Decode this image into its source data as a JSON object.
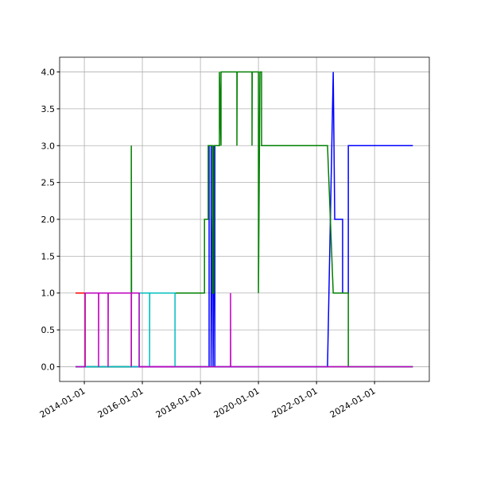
{
  "chart_data": {
    "type": "line",
    "xlim": [
      "2013-02-24",
      "2025-11-20"
    ],
    "xticks": [
      "2014-01-01",
      "2016-01-01",
      "2018-01-01",
      "2020-01-01",
      "2022-01-01",
      "2024-01-01"
    ],
    "ylim": [
      -0.2,
      4.2
    ],
    "yticks": [
      {
        "value": 0,
        "label": "0.0"
      },
      {
        "value": 0.5,
        "label": "0.5"
      },
      {
        "value": 1,
        "label": "1.0"
      },
      {
        "value": 1.5,
        "label": "1.5"
      },
      {
        "value": 2,
        "label": "2.0"
      },
      {
        "value": 2.5,
        "label": "2.5"
      },
      {
        "value": 3,
        "label": "3.0"
      },
      {
        "value": 3.5,
        "label": "3.5"
      },
      {
        "value": 4,
        "label": "4.0"
      }
    ],
    "grid": true,
    "series": [
      {
        "color": "#ff0000",
        "x": [
          "2013-09-12",
          "2014-01-11",
          "2014-01-11",
          "2025-04-27"
        ],
        "values": [
          1,
          1,
          0,
          0
        ]
      },
      {
        "color": "#0000ff",
        "x": [
          "2013-09-12",
          "2018-04-20",
          "2018-04-20",
          "2018-05-15",
          "2018-05-15",
          "2018-06-09",
          "2018-06-09",
          "2018-07-01",
          "2018-07-01",
          "2022-05-19",
          "2022-07-30",
          "2022-08-18",
          "2022-11-25",
          "2022-11-25",
          "2023-02-05",
          "2023-02-05",
          "2025-04-27"
        ],
        "values": [
          0,
          0,
          3,
          3,
          0,
          3,
          0,
          3,
          0,
          0,
          4,
          2,
          2,
          1,
          1,
          3,
          3
        ]
      },
      {
        "color": "#008000",
        "x": [
          "2013-09-12",
          "2015-08-15",
          "2015-08-15",
          "2015-08-18",
          "2018-02-21",
          "2018-02-21",
          "2018-04-09",
          "2018-04-09",
          "2018-06-01",
          "2018-06-01",
          "2018-06-20",
          "2018-06-20",
          "2018-08-28",
          "2018-08-28",
          "2018-09-17",
          "2018-09-17",
          "2019-04-05",
          "2019-04-05",
          "2019-04-08",
          "2019-10-12",
          "2019-10-12",
          "2019-10-15",
          "2020-01-01",
          "2020-01-01",
          "2020-01-20",
          "2020-02-09",
          "2020-02-09",
          "2022-05-19",
          "2022-07-30",
          "2023-02-05",
          "2023-02-05",
          "2025-04-27"
        ],
        "values": [
          0,
          0,
          3,
          1,
          1,
          2,
          2,
          3,
          3,
          1,
          1,
          3,
          3,
          4,
          3,
          4,
          4,
          3,
          4,
          4,
          3,
          4,
          4,
          1,
          4,
          4,
          3,
          3,
          1,
          1,
          0,
          0
        ]
      },
      {
        "color": "#00bfbf",
        "x": [
          "2013-09-12",
          "2015-11-22",
          "2015-11-22",
          "2016-04-01",
          "2016-04-01",
          "2016-04-03",
          "2017-02-15",
          "2017-02-15",
          "2025-04-27"
        ],
        "values": [
          0,
          0,
          1,
          1,
          0,
          1,
          1,
          0,
          0
        ]
      },
      {
        "color": "#bf00bf",
        "x": [
          "2013-09-12",
          "2014-01-11",
          "2014-01-11",
          "2014-06-29",
          "2014-06-29",
          "2014-07-01",
          "2014-10-27",
          "2014-10-27",
          "2014-10-29",
          "2015-08-15",
          "2015-08-15",
          "2015-08-17",
          "2015-11-22",
          "2015-11-22",
          "2019-01-15",
          "2019-01-15",
          "2019-01-17",
          "2025-04-27"
        ],
        "values": [
          0,
          0,
          1,
          1,
          0,
          1,
          1,
          0,
          1,
          1,
          0,
          1,
          1,
          0,
          0,
          1,
          0,
          0
        ]
      }
    ]
  }
}
